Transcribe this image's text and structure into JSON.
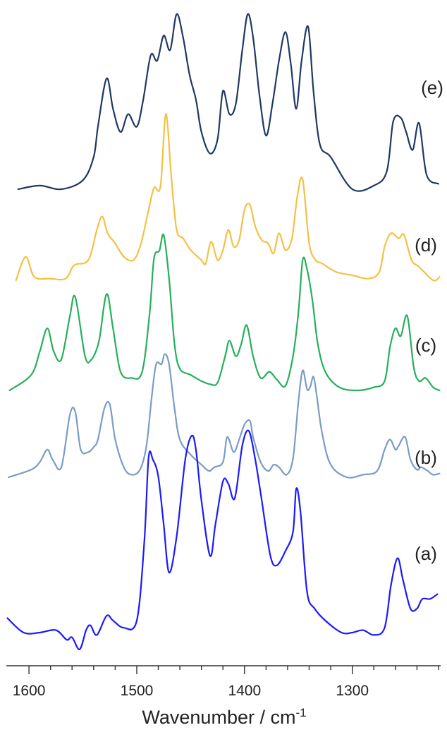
{
  "chart_data": {
    "type": "line",
    "title": "",
    "xlabel": "Wavenumber / cm",
    "xlabel_superscript": "-1",
    "ylabel": "",
    "x_reversed": true,
    "xlim": [
      1621,
      1218
    ],
    "x_ticks": [
      1600,
      1500,
      1400,
      1300
    ],
    "y_axis_shown": false,
    "grid": false,
    "series": [
      {
        "name": "(e)",
        "color": "#1f3864",
        "x": [
          1610,
          1590,
          1570,
          1550,
          1540,
          1536,
          1528,
          1522,
          1515,
          1508,
          1500,
          1494,
          1487,
          1481,
          1475,
          1469,
          1463,
          1457,
          1451,
          1445,
          1440,
          1432,
          1425,
          1420,
          1414,
          1408,
          1402,
          1397,
          1392,
          1386,
          1380,
          1374,
          1368,
          1362,
          1357,
          1352,
          1347,
          1341,
          1336,
          1330,
          1320,
          1300,
          1280,
          1268,
          1262,
          1255,
          1250,
          1244,
          1238,
          1231,
          1220
        ],
        "y": [
          0.0,
          0.02,
          0.0,
          0.05,
          0.18,
          0.35,
          0.62,
          0.45,
          0.32,
          0.42,
          0.35,
          0.5,
          0.75,
          0.72,
          0.86,
          0.78,
          0.98,
          0.85,
          0.64,
          0.5,
          0.32,
          0.2,
          0.28,
          0.55,
          0.42,
          0.48,
          0.78,
          0.98,
          0.85,
          0.52,
          0.3,
          0.48,
          0.72,
          0.88,
          0.7,
          0.45,
          0.72,
          0.91,
          0.55,
          0.25,
          0.18,
          0.0,
          0.02,
          0.1,
          0.38,
          0.4,
          0.32,
          0.22,
          0.37,
          0.08,
          0.03
        ]
      },
      {
        "name": "(d)",
        "color": "#f5c044",
        "x": [
          1612,
          1603,
          1595,
          1580,
          1566,
          1558,
          1545,
          1537,
          1532,
          1527,
          1520,
          1512,
          1503,
          1496,
          1489,
          1484,
          1478,
          1473,
          1468,
          1463,
          1457,
          1450,
          1440,
          1436,
          1431,
          1425,
          1420,
          1415,
          1410,
          1405,
          1400,
          1395,
          1390,
          1384,
          1378,
          1373,
          1368,
          1362,
          1356,
          1351,
          1346,
          1340,
          1334,
          1328,
          1315,
          1300,
          1285,
          1275,
          1270,
          1264,
          1257,
          1252,
          1245,
          1238,
          1225,
          1219
        ],
        "y": [
          0.0,
          0.14,
          0.02,
          0.01,
          0.01,
          0.09,
          0.12,
          0.3,
          0.38,
          0.28,
          0.22,
          0.14,
          0.12,
          0.22,
          0.42,
          0.55,
          0.56,
          0.99,
          0.62,
          0.3,
          0.25,
          0.18,
          0.12,
          0.1,
          0.23,
          0.12,
          0.18,
          0.3,
          0.2,
          0.24,
          0.42,
          0.45,
          0.32,
          0.24,
          0.22,
          0.16,
          0.28,
          0.18,
          0.25,
          0.5,
          0.6,
          0.22,
          0.12,
          0.1,
          0.05,
          0.03,
          0.01,
          0.05,
          0.2,
          0.28,
          0.25,
          0.27,
          0.12,
          0.08,
          0.0,
          0.02
        ]
      },
      {
        "name": "(c)",
        "color": "#25b05a",
        "x": [
          1618,
          1598,
          1590,
          1583,
          1577,
          1570,
          1562,
          1557,
          1548,
          1542,
          1535,
          1528,
          1522,
          1515,
          1505,
          1495,
          1488,
          1484,
          1479,
          1475,
          1470,
          1465,
          1460,
          1450,
          1440,
          1432,
          1425,
          1418,
          1414,
          1408,
          1403,
          1398,
          1392,
          1385,
          1377,
          1370,
          1362,
          1355,
          1350,
          1346,
          1342,
          1337,
          1332,
          1325,
          1312,
          1295,
          1280,
          1270,
          1265,
          1260,
          1255,
          1249,
          1243,
          1238,
          1232,
          1225,
          1219
        ],
        "y": [
          0.0,
          0.1,
          0.25,
          0.4,
          0.25,
          0.2,
          0.48,
          0.6,
          0.22,
          0.2,
          0.32,
          0.62,
          0.4,
          0.12,
          0.08,
          0.12,
          0.5,
          0.85,
          0.9,
          1.0,
          0.72,
          0.3,
          0.14,
          0.1,
          0.06,
          0.04,
          0.05,
          0.22,
          0.32,
          0.22,
          0.3,
          0.42,
          0.22,
          0.08,
          0.12,
          0.07,
          0.03,
          0.22,
          0.5,
          0.84,
          0.78,
          0.58,
          0.3,
          0.12,
          0.02,
          0.0,
          0.02,
          0.06,
          0.28,
          0.4,
          0.35,
          0.48,
          0.15,
          0.06,
          0.08,
          0.02,
          0.0
        ]
      },
      {
        "name": "(b)",
        "color": "#7a9cc6",
        "x": [
          1619,
          1598,
          1590,
          1583,
          1578,
          1570,
          1562,
          1557,
          1552,
          1545,
          1540,
          1536,
          1530,
          1525,
          1520,
          1512,
          1505,
          1497,
          1491,
          1486,
          1482,
          1477,
          1474,
          1470,
          1465,
          1460,
          1450,
          1440,
          1433,
          1428,
          1420,
          1416,
          1410,
          1405,
          1400,
          1395,
          1392,
          1385,
          1378,
          1373,
          1368,
          1361,
          1355,
          1350,
          1346,
          1342,
          1339,
          1336,
          1333,
          1328,
          1320,
          1305,
          1290,
          1277,
          1270,
          1265,
          1260,
          1257,
          1251,
          1246,
          1240,
          1236,
          1230,
          1225,
          1219
        ],
        "y": [
          0.0,
          0.06,
          0.12,
          0.22,
          0.14,
          0.08,
          0.5,
          0.52,
          0.22,
          0.2,
          0.24,
          0.3,
          0.55,
          0.58,
          0.3,
          0.08,
          0.02,
          0.06,
          0.25,
          0.65,
          0.9,
          0.9,
          0.98,
          0.9,
          0.55,
          0.3,
          0.18,
          0.1,
          0.05,
          0.08,
          0.12,
          0.32,
          0.2,
          0.3,
          0.42,
          0.45,
          0.32,
          0.12,
          0.05,
          0.1,
          0.08,
          0.02,
          0.15,
          0.6,
          0.85,
          0.7,
          0.72,
          0.8,
          0.65,
          0.35,
          0.1,
          0.0,
          0.02,
          0.05,
          0.22,
          0.3,
          0.22,
          0.25,
          0.32,
          0.14,
          0.06,
          0.08,
          0.05,
          0.02,
          0.03
        ]
      },
      {
        "name": "(a)",
        "color": "#1a1aff",
        "x": [
          1620,
          1605,
          1590,
          1575,
          1565,
          1560,
          1553,
          1547,
          1543,
          1537,
          1528,
          1522,
          1512,
          1500,
          1493,
          1489,
          1485,
          1480,
          1475,
          1470,
          1463,
          1455,
          1449,
          1445,
          1440,
          1432,
          1427,
          1420,
          1415,
          1409,
          1402,
          1396,
          1390,
          1384,
          1376,
          1370,
          1362,
          1355,
          1352,
          1348,
          1342,
          1335,
          1325,
          1310,
          1300,
          1290,
          1280,
          1270,
          1264,
          1258,
          1253,
          1246,
          1240,
          1235,
          1228,
          1221
        ],
        "y": [
          0.06,
          0.0,
          0.0,
          0.01,
          -0.03,
          -0.02,
          -0.07,
          0.01,
          0.03,
          -0.01,
          0.07,
          0.05,
          0.02,
          0.05,
          0.38,
          0.73,
          0.72,
          0.65,
          0.45,
          0.25,
          0.4,
          0.72,
          0.82,
          0.76,
          0.55,
          0.32,
          0.45,
          0.63,
          0.62,
          0.56,
          0.78,
          0.84,
          0.72,
          0.55,
          0.32,
          0.28,
          0.34,
          0.42,
          0.6,
          0.5,
          0.17,
          0.1,
          0.05,
          0.0,
          0.0,
          0.01,
          -0.01,
          0.02,
          0.2,
          0.31,
          0.22,
          0.1,
          0.1,
          0.14,
          0.14,
          0.16
        ]
      }
    ]
  }
}
